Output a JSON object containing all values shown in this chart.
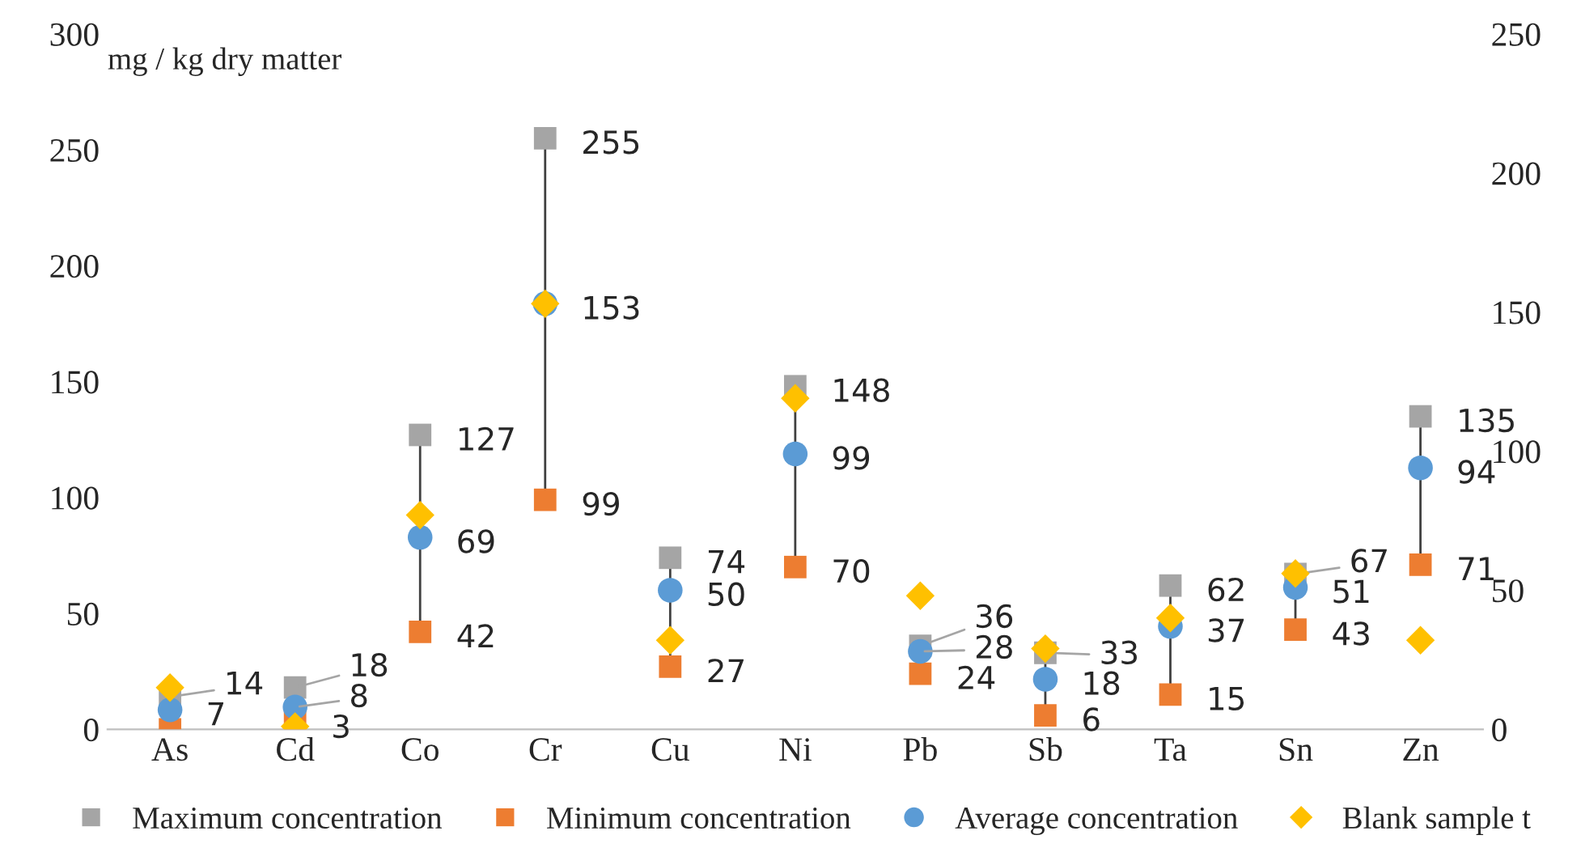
{
  "chart_data": {
    "type": "scatter",
    "ylabel": "mg / kg dry matter",
    "categories": [
      "As",
      "Cd",
      "Co",
      "Cr",
      "Cu",
      "Ni",
      "Pb",
      "Sb",
      "Ta",
      "Sn",
      "Zn"
    ],
    "series": [
      {
        "name": "Maximum concentration",
        "color": "#a5a5a5",
        "marker": "square",
        "values": [
          14,
          18,
          127,
          255,
          74,
          148,
          36,
          33,
          62,
          67,
          135
        ],
        "value_labels": [
          "14",
          "18",
          "127",
          "255",
          "74",
          "148",
          "36",
          "33",
          "62",
          "67",
          "135"
        ]
      },
      {
        "name": "Minimum concentration",
        "color": "#ed7d31",
        "marker": "square",
        "values": [
          0,
          3,
          42,
          99,
          27,
          70,
          24,
          6,
          15,
          43,
          71
        ],
        "value_labels": [
          null,
          "3",
          "42",
          "99",
          "27",
          "70",
          "24",
          "6",
          "15",
          "43",
          "71"
        ]
      },
      {
        "name": "Average concentration",
        "color": "#5b9bd5",
        "marker": "circle",
        "axis": "y2",
        "values": [
          7,
          8,
          69,
          153,
          50,
          99,
          28,
          18,
          37,
          51,
          94
        ],
        "value_labels": [
          "7",
          "8",
          "69",
          "153",
          "50",
          "99",
          "28",
          "18",
          "37",
          "51",
          "94"
        ]
      },
      {
        "name": "Blank sample t",
        "color": "#ffc000",
        "marker": "diamond",
        "axis": "y2",
        "values": [
          15,
          1,
          77,
          153,
          32,
          119,
          48,
          29,
          40,
          56,
          32
        ]
      }
    ],
    "ylim": [
      0,
      300
    ],
    "yticks": [
      0,
      50,
      100,
      150,
      200,
      250,
      300
    ],
    "y2lim": [
      0,
      250
    ],
    "y2ticks": [
      0,
      50,
      100,
      150,
      200,
      250
    ],
    "grid": false,
    "legend": "bottom"
  }
}
